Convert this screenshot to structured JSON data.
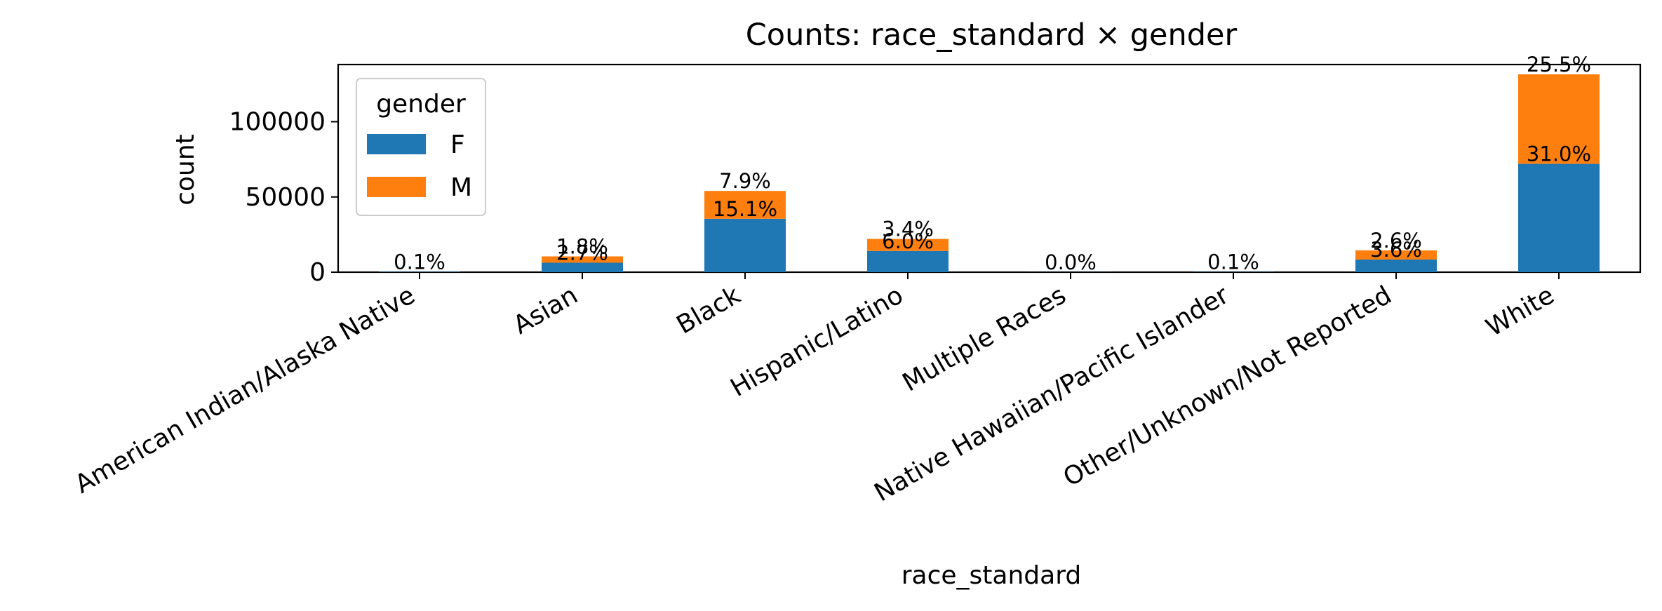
{
  "chart_data": {
    "type": "bar",
    "stacked": true,
    "title": "Counts: race_standard × gender",
    "xlabel": "race_standard",
    "ylabel": "count",
    "ylim": [
      0,
      138000
    ],
    "yticks": [
      0,
      50000,
      100000
    ],
    "ytick_labels": [
      "0",
      "50000",
      "100000"
    ],
    "categories": [
      "American Indian/Alaska Native",
      "Asian",
      "Black",
      "Hispanic/Latino",
      "Multiple Races",
      "Native Hawaiian/Pacific Islander",
      "Other/Unknown/Not Reported",
      "White"
    ],
    "series": [
      {
        "name": "F",
        "color": "#1f77b4",
        "values": [
          300,
          6300,
          35500,
          14100,
          50,
          150,
          8400,
          72000
        ],
        "labels": [
          "0.1%",
          "2.7%",
          "15.1%",
          "6.0%",
          "0.0%",
          "0.1%",
          "3.6%",
          "31.0%"
        ]
      },
      {
        "name": "M",
        "color": "#ff7f0e",
        "values": [
          0,
          4200,
          18500,
          8000,
          0,
          0,
          6100,
          59500
        ],
        "labels": [
          "",
          "1.8%",
          "7.9%",
          "3.4%",
          "",
          "",
          "2.6%",
          "25.5%"
        ]
      }
    ],
    "legend": {
      "title": "gender",
      "placement": "upper-left",
      "entries": [
        "F",
        "M"
      ]
    }
  }
}
